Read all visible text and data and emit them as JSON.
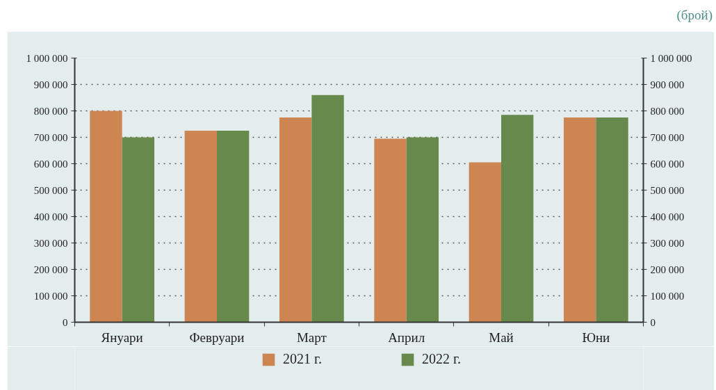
{
  "chart_data": {
    "type": "bar",
    "y2label": "(брой)",
    "categories": [
      "Януари",
      "Февруари",
      "Март",
      "Април",
      "Май",
      "Юни"
    ],
    "series": [
      {
        "name": "2021 г.",
        "color": "#cd8552",
        "values": [
          800000,
          725000,
          775000,
          695000,
          605000,
          775000
        ]
      },
      {
        "name": "2022 г.",
        "color": "#678a4c",
        "values": [
          700000,
          725000,
          860000,
          700000,
          785000,
          775000
        ]
      }
    ],
    "ylim": [
      0,
      1000000
    ],
    "yticks": [
      0,
      {
        "value": 100000,
        "label": "100 000"
      },
      {
        "value": 200000,
        "label": "200 000"
      },
      {
        "value": 300000,
        "label": "300 000"
      },
      {
        "value": 400000,
        "label": "400 000"
      },
      {
        "value": 500000,
        "label": "500 000"
      },
      {
        "value": 600000,
        "label": "600 000"
      },
      {
        "value": 700000,
        "label": "700 000"
      },
      {
        "value": 800000,
        "label": "800 000"
      },
      {
        "value": 900000,
        "label": "900 000"
      },
      {
        "value": 1000000,
        "label": "1 000 000"
      }
    ],
    "y2lim": [
      0,
      1000000
    ],
    "y2ticks": [
      0,
      {
        "value": 100000,
        "label": "100 000"
      },
      {
        "value": 200000,
        "label": "200 000"
      },
      {
        "value": 300000,
        "label": "300 000"
      },
      {
        "value": 400000,
        "label": "400 000"
      },
      {
        "value": 500000,
        "label": "500 000"
      },
      {
        "value": 600000,
        "label": "600 000"
      },
      {
        "value": 700000,
        "label": "700 000"
      },
      {
        "value": 800000,
        "label": "800 000"
      },
      {
        "value": 900000,
        "label": "900 000"
      },
      {
        "value": 1000000,
        "label": "1 000 000"
      }
    ],
    "grid": "y",
    "legend": "bottom"
  }
}
